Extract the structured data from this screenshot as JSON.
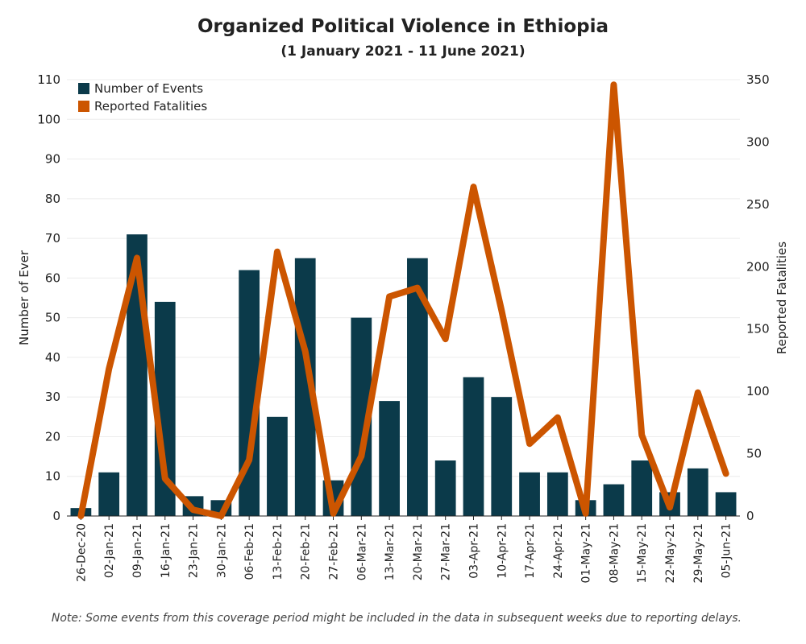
{
  "chart_data": {
    "type": "bar+line",
    "title": "Organized Political Violence in Ethiopia",
    "subtitle": "(1 January 2021 - 11 June 2021)",
    "categories": [
      "26-Dec-20",
      "02-Jan-21",
      "09-Jan-21",
      "16-Jan-21",
      "23-Jan-21",
      "30-Jan-21",
      "06-Feb-21",
      "13-Feb-21",
      "20-Feb-21",
      "27-Feb-21",
      "06-Mar-21",
      "13-Mar-21",
      "20-Mar-21",
      "27-Mar-21",
      "03-Apr-21",
      "10-Apr-21",
      "17-Apr-21",
      "24-Apr-21",
      "01-May-21",
      "08-May-21",
      "15-May-21",
      "22-May-21",
      "29-May-21",
      "05-Jun-21"
    ],
    "series": [
      {
        "name": "Number of Events",
        "type": "bar",
        "axis": "left",
        "color": "#0b3a4a",
        "values": [
          2,
          11,
          71,
          54,
          5,
          4,
          62,
          25,
          65,
          9,
          50,
          29,
          65,
          14,
          35,
          30,
          11,
          11,
          4,
          8,
          14,
          6,
          12,
          6
        ]
      },
      {
        "name": "Reported Fatalities",
        "type": "line",
        "axis": "right",
        "color": "#cc5500",
        "values": [
          0,
          118,
          207,
          30,
          5,
          0,
          45,
          212,
          132,
          2,
          48,
          176,
          183,
          142,
          264,
          165,
          58,
          79,
          2,
          346,
          65,
          7,
          99,
          34
        ]
      }
    ],
    "ylabel": "Number of Ever",
    "y2label": "Reported Fatalities",
    "ylim": [
      0,
      110
    ],
    "yticks": [
      0,
      10,
      20,
      30,
      40,
      50,
      60,
      70,
      80,
      90,
      100,
      110
    ],
    "y2lim": [
      0,
      350
    ],
    "y2ticks": [
      0,
      50,
      100,
      150,
      200,
      250,
      300,
      350
    ],
    "legend_position": "top-left",
    "grid": true
  },
  "note": "Note: Some events from this coverage period might be included in the data in subsequent weeks due to reporting delays."
}
